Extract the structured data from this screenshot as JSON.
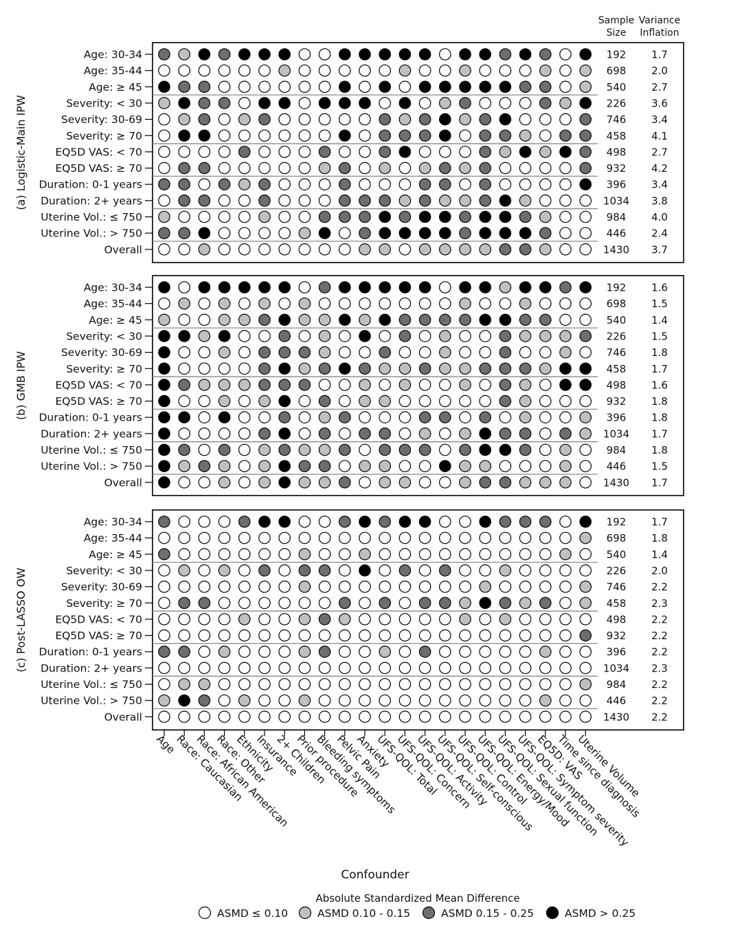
{
  "chart_data": {
    "type": "heatmap",
    "xlabel": "Confounder",
    "columns": [
      "Age",
      "Race: Caucasian",
      "Race: African American",
      "Race: Other",
      "Ethnicity",
      "Insurance",
      "2+ Children",
      "Prior procedure",
      "Bleeding symptoms",
      "Pelvic Pain",
      "Anxiety",
      "UFS-QOL: Total",
      "UFS-QOL: Concern",
      "UFS-QOL: Activity",
      "UFS-QOL: Self-conscious",
      "UFS-QOL: Control",
      "UFS-QOL: Energy/Mood",
      "UFS-QOL: Sexual function",
      "UFS-QOL: Symptom severity",
      "EQ5D: VAS",
      "Time since diagnosis",
      "Uterine Volume"
    ],
    "row_labels": [
      "Age: 30-34",
      "Age: 35-44",
      "Age: ≥ 45",
      "Severity: < 30",
      "Severity: 30-69",
      "Severity: ≥ 70",
      "EQ5D VAS: < 70",
      "EQ5D VAS: ≥ 70",
      "Duration: 0-1 years",
      "Duration: 2+ years",
      "Uterine Vol.: ≤ 750",
      "Uterine Vol.: > 750",
      "Overall"
    ],
    "row_groups_after": [
      3,
      6,
      8,
      10,
      12
    ],
    "right_headers": [
      "Sample\nSize",
      "Variance\nInflation"
    ],
    "sample_size": [
      "192",
      "698",
      "540",
      "226",
      "746",
      "458",
      "498",
      "932",
      "396",
      "1034",
      "984",
      "446",
      "1430"
    ],
    "value_encoding": "0 = ASMD ≤ 0.10, 1 = ASMD 0.10 - 0.15, 2 = ASMD 0.15 - 0.25, 3 = ASMD > 0.25",
    "panels": [
      {
        "label": "(a) Logistic-Main IPW",
        "variance_inflation": [
          "1.7",
          "2.0",
          "2.7",
          "3.6",
          "3.4",
          "4.1",
          "2.7",
          "4.2",
          "3.4",
          "3.8",
          "4.0",
          "2.4",
          "3.7"
        ],
        "values": [
          [
            2,
            1,
            3,
            2,
            3,
            3,
            3,
            0,
            0,
            3,
            3,
            3,
            3,
            3,
            0,
            3,
            3,
            2,
            3,
            2,
            0,
            3
          ],
          [
            0,
            0,
            0,
            0,
            0,
            0,
            1,
            0,
            0,
            0,
            0,
            0,
            1,
            0,
            0,
            1,
            0,
            0,
            0,
            1,
            0,
            1
          ],
          [
            3,
            2,
            2,
            0,
            0,
            0,
            0,
            0,
            0,
            3,
            0,
            3,
            0,
            3,
            3,
            3,
            3,
            3,
            2,
            2,
            0,
            1
          ],
          [
            1,
            3,
            2,
            2,
            0,
            3,
            3,
            0,
            3,
            3,
            3,
            0,
            3,
            0,
            1,
            2,
            0,
            0,
            0,
            2,
            1,
            3
          ],
          [
            0,
            1,
            2,
            0,
            1,
            2,
            0,
            0,
            0,
            0,
            0,
            2,
            1,
            2,
            3,
            1,
            2,
            3,
            0,
            0,
            0,
            2
          ],
          [
            0,
            3,
            3,
            0,
            0,
            0,
            0,
            0,
            0,
            3,
            0,
            2,
            2,
            2,
            3,
            0,
            2,
            2,
            1,
            0,
            2,
            2
          ],
          [
            0,
            0,
            0,
            0,
            2,
            0,
            0,
            0,
            2,
            0,
            0,
            2,
            3,
            0,
            0,
            0,
            2,
            1,
            3,
            1,
            3,
            2
          ],
          [
            0,
            2,
            2,
            0,
            0,
            0,
            0,
            0,
            1,
            2,
            0,
            1,
            0,
            1,
            2,
            1,
            2,
            0,
            0,
            0,
            0,
            2
          ],
          [
            2,
            2,
            0,
            2,
            1,
            2,
            0,
            0,
            0,
            2,
            0,
            0,
            0,
            2,
            2,
            0,
            2,
            0,
            0,
            0,
            0,
            3
          ],
          [
            0,
            2,
            2,
            0,
            0,
            2,
            0,
            0,
            0,
            2,
            2,
            2,
            1,
            2,
            1,
            1,
            2,
            3,
            1,
            0,
            0,
            0
          ],
          [
            1,
            0,
            0,
            0,
            0,
            1,
            0,
            0,
            2,
            2,
            2,
            3,
            2,
            3,
            3,
            2,
            3,
            3,
            2,
            1,
            0,
            0
          ],
          [
            2,
            2,
            3,
            0,
            0,
            0,
            0,
            1,
            3,
            0,
            2,
            3,
            3,
            3,
            3,
            2,
            3,
            3,
            3,
            2,
            0,
            0
          ],
          [
            0,
            0,
            1,
            0,
            0,
            0,
            0,
            0,
            0,
            0,
            1,
            1,
            0,
            1,
            1,
            1,
            1,
            2,
            2,
            1,
            0,
            0
          ]
        ]
      },
      {
        "label": "(b) GMB IPW",
        "variance_inflation": [
          "1.6",
          "1.5",
          "1.4",
          "1.5",
          "1.8",
          "1.7",
          "1.6",
          "1.8",
          "1.8",
          "1.7",
          "1.8",
          "1.5",
          "1.7"
        ],
        "values": [
          [
            3,
            0,
            3,
            3,
            3,
            3,
            3,
            0,
            2,
            3,
            3,
            3,
            3,
            3,
            0,
            3,
            3,
            1,
            3,
            3,
            2,
            3
          ],
          [
            0,
            1,
            0,
            1,
            0,
            1,
            0,
            1,
            0,
            0,
            0,
            0,
            0,
            0,
            0,
            1,
            0,
            0,
            1,
            0,
            0,
            0
          ],
          [
            1,
            0,
            0,
            1,
            1,
            2,
            3,
            1,
            1,
            3,
            1,
            3,
            2,
            2,
            2,
            2,
            3,
            3,
            2,
            2,
            0,
            0
          ],
          [
            3,
            3,
            1,
            3,
            0,
            0,
            2,
            0,
            1,
            0,
            3,
            0,
            2,
            0,
            1,
            0,
            0,
            2,
            1,
            1,
            1,
            2
          ],
          [
            3,
            0,
            0,
            1,
            0,
            2,
            2,
            2,
            1,
            0,
            0,
            2,
            0,
            0,
            1,
            0,
            0,
            2,
            0,
            0,
            1,
            0
          ],
          [
            3,
            0,
            0,
            0,
            0,
            2,
            3,
            1,
            2,
            3,
            2,
            1,
            1,
            2,
            1,
            1,
            2,
            2,
            2,
            1,
            3,
            3
          ],
          [
            3,
            2,
            1,
            1,
            1,
            2,
            2,
            2,
            0,
            0,
            1,
            0,
            1,
            0,
            0,
            1,
            0,
            2,
            1,
            0,
            3,
            3
          ],
          [
            3,
            0,
            0,
            1,
            0,
            1,
            3,
            0,
            2,
            0,
            1,
            1,
            0,
            0,
            0,
            0,
            0,
            2,
            1,
            0,
            0,
            0
          ],
          [
            3,
            3,
            0,
            3,
            0,
            0,
            2,
            0,
            1,
            2,
            0,
            0,
            0,
            2,
            2,
            0,
            2,
            0,
            1,
            0,
            0,
            1
          ],
          [
            3,
            0,
            0,
            0,
            0,
            2,
            3,
            0,
            2,
            0,
            2,
            2,
            0,
            1,
            0,
            1,
            3,
            2,
            2,
            0,
            2,
            1
          ],
          [
            3,
            2,
            0,
            2,
            0,
            1,
            2,
            1,
            1,
            2,
            0,
            2,
            2,
            2,
            0,
            2,
            3,
            3,
            2,
            0,
            1,
            0
          ],
          [
            3,
            1,
            2,
            1,
            0,
            1,
            3,
            2,
            2,
            0,
            1,
            1,
            0,
            0,
            3,
            1,
            1,
            0,
            0,
            0,
            1,
            0
          ],
          [
            3,
            0,
            0,
            1,
            0,
            1,
            3,
            1,
            1,
            2,
            0,
            1,
            1,
            0,
            0,
            1,
            2,
            2,
            1,
            1,
            1,
            0
          ]
        ]
      },
      {
        "label": "(c) Post-LASSO OW",
        "variance_inflation": [
          "1.7",
          "1.8",
          "1.4",
          "2.0",
          "2.2",
          "2.3",
          "2.2",
          "2.2",
          "2.2",
          "2.3",
          "2.2",
          "2.2",
          "2.2"
        ],
        "values": [
          [
            2,
            0,
            0,
            0,
            2,
            3,
            3,
            0,
            0,
            2,
            3,
            2,
            3,
            3,
            0,
            0,
            3,
            2,
            2,
            2,
            0,
            3
          ],
          [
            0,
            0,
            0,
            0,
            0,
            0,
            0,
            0,
            0,
            0,
            0,
            0,
            0,
            0,
            0,
            0,
            0,
            0,
            0,
            0,
            0,
            1
          ],
          [
            2,
            0,
            0,
            0,
            0,
            0,
            0,
            1,
            0,
            0,
            1,
            0,
            0,
            0,
            0,
            0,
            0,
            0,
            0,
            0,
            1,
            0
          ],
          [
            0,
            1,
            0,
            1,
            0,
            2,
            0,
            2,
            2,
            0,
            3,
            0,
            2,
            0,
            2,
            0,
            0,
            1,
            0,
            0,
            0,
            0
          ],
          [
            0,
            0,
            0,
            0,
            0,
            0,
            0,
            1,
            0,
            0,
            0,
            0,
            0,
            0,
            0,
            0,
            1,
            0,
            0,
            0,
            0,
            1
          ],
          [
            0,
            2,
            2,
            0,
            0,
            0,
            0,
            0,
            0,
            2,
            0,
            2,
            0,
            2,
            2,
            1,
            3,
            2,
            1,
            2,
            0,
            1
          ],
          [
            0,
            0,
            0,
            0,
            1,
            0,
            0,
            1,
            2,
            1,
            0,
            0,
            0,
            0,
            0,
            1,
            0,
            1,
            0,
            0,
            0,
            0
          ],
          [
            0,
            0,
            0,
            0,
            0,
            0,
            0,
            0,
            0,
            0,
            0,
            0,
            0,
            0,
            0,
            0,
            0,
            0,
            0,
            0,
            0,
            2
          ],
          [
            2,
            2,
            0,
            1,
            0,
            0,
            0,
            1,
            2,
            0,
            0,
            1,
            0,
            2,
            0,
            0,
            0,
            0,
            0,
            1,
            0,
            0
          ],
          [
            0,
            0,
            0,
            0,
            0,
            0,
            0,
            0,
            0,
            0,
            0,
            0,
            0,
            0,
            0,
            0,
            0,
            0,
            0,
            0,
            0,
            0
          ],
          [
            0,
            1,
            1,
            0,
            0,
            0,
            0,
            0,
            0,
            0,
            0,
            0,
            0,
            0,
            0,
            0,
            0,
            0,
            0,
            0,
            0,
            1
          ],
          [
            1,
            3,
            2,
            0,
            1,
            0,
            0,
            1,
            0,
            0,
            0,
            0,
            0,
            0,
            0,
            0,
            0,
            0,
            0,
            1,
            0,
            0
          ],
          [
            0,
            0,
            0,
            0,
            0,
            0,
            0,
            0,
            0,
            0,
            0,
            0,
            0,
            0,
            0,
            0,
            0,
            0,
            0,
            0,
            0,
            0
          ]
        ]
      }
    ],
    "legend": {
      "title": "Absolute Standardized Mean Difference",
      "placement": "bottom-center",
      "entries": [
        "ASMD ≤ 0.10",
        "ASMD 0.10 - 0.15",
        "ASMD 0.15 - 0.25",
        "ASMD > 0.25"
      ]
    },
    "colors": [
      "#ffffff",
      "#c0c0c0",
      "#6e6e6e",
      "#000000"
    ]
  }
}
